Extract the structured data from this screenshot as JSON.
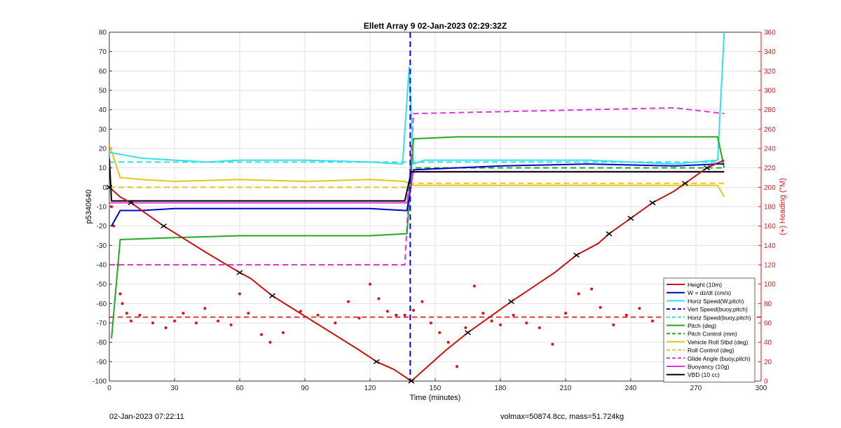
{
  "chart_data": {
    "type": "line",
    "title": "Ellett Array 9 02-Jan-2023 02:29:32Z",
    "xlabel": "Time (minutes)",
    "ylabel_left": "p5340640",
    "ylabel_right": "(+) Heading (°M)",
    "xlim": [
      0,
      300
    ],
    "ylim_left": [
      -100,
      80
    ],
    "ylim_right": [
      0,
      360
    ],
    "xticks": [
      0,
      30,
      60,
      90,
      120,
      150,
      180,
      210,
      240,
      270,
      300
    ],
    "yticks_left": [
      80,
      70,
      60,
      50,
      40,
      30,
      20,
      10,
      0,
      -10,
      -20,
      -30,
      -40,
      -50,
      -60,
      -70,
      -80,
      -90,
      -100
    ],
    "yticks_right": [
      360,
      340,
      320,
      300,
      280,
      260,
      240,
      220,
      200,
      180,
      160,
      140,
      120,
      100,
      80,
      60,
      40,
      20,
      0
    ],
    "grid": true,
    "legend_position": "lower-right",
    "colors": {
      "height": "#cc1111",
      "w": "#0000cc",
      "horiz_speed": "#33e0e8",
      "vert_speed": "#0000ee",
      "horiz_speed_buoy": "#33e0e8",
      "pitch": "#22aa22",
      "pitch_control": "#22aa22",
      "roll": "#e6c619",
      "roll_control": "#e6c619",
      "glide_angle": "#e033e0",
      "buoyancy": "#e033e0",
      "vbd": "#000000",
      "heading": "#dd1111",
      "right_axis": "#cc2222"
    },
    "series": [
      {
        "name": "Height (10m)",
        "style": "solid-markers",
        "x": [
          0,
          5,
          10,
          15,
          25,
          45,
          60,
          65,
          75,
          115,
          123,
          131,
          139,
          155,
          165,
          175,
          185,
          205,
          215,
          225,
          230,
          235,
          240,
          245,
          250,
          260,
          265,
          270,
          275,
          283
        ],
        "y": [
          0,
          -5,
          -8,
          -12,
          -20,
          -34,
          -44,
          -47,
          -56,
          -84,
          -90,
          -94,
          -100,
          -84,
          -75,
          -67,
          -59,
          -44,
          -35,
          -29,
          -24,
          -20,
          -16,
          -12,
          -8,
          -2,
          2,
          6,
          10,
          14
        ]
      },
      {
        "name": "W = dz/dt (cm/s)",
        "style": "solid",
        "x": [
          1,
          5,
          15,
          30,
          60,
          90,
          120,
          136,
          137,
          140,
          180,
          220,
          260,
          280,
          283
        ],
        "y": [
          -20,
          -12,
          -12,
          -11,
          -11,
          -11,
          -11,
          -12,
          -12,
          9,
          11,
          12,
          11,
          12,
          12
        ]
      },
      {
        "name": "Horiz Speed(W,pitch)",
        "style": "solid",
        "x": [
          0,
          5,
          15,
          30,
          45,
          60,
          90,
          120,
          135,
          138,
          140,
          145,
          180,
          220,
          260,
          280,
          283
        ],
        "y": [
          18,
          17,
          15,
          14,
          13,
          14,
          14,
          13,
          12,
          62,
          12,
          14,
          14,
          14,
          12,
          14,
          80
        ]
      },
      {
        "name": "Vert Speed(buoy,pitch)",
        "style": "dashed",
        "x": [
          138.5,
          138.5
        ],
        "y": [
          80,
          -100
        ]
      },
      {
        "name": "Horiz Speed(buoy,pitch)",
        "style": "dashed",
        "x": [
          0,
          283
        ],
        "y": [
          13,
          13
        ]
      },
      {
        "name": "Pitch (deg)",
        "style": "solid",
        "x": [
          1,
          5,
          30,
          60,
          90,
          120,
          136,
          137,
          140,
          160,
          200,
          240,
          280,
          283
        ],
        "y": [
          -78,
          -27,
          -26,
          -25,
          -25,
          -25,
          -24,
          -24,
          25,
          26,
          26,
          26,
          26,
          10
        ]
      },
      {
        "name": "Pitch Control (mm)",
        "style": "dashed",
        "x": [
          0,
          137,
          139,
          283
        ],
        "y": [
          -8,
          -8,
          10,
          10
        ]
      },
      {
        "name": "Vehicle Roll Stbd (deg)",
        "style": "solid",
        "x": [
          0,
          5,
          15,
          30,
          60,
          90,
          120,
          136,
          140,
          170,
          200,
          240,
          280,
          283
        ],
        "y": [
          22,
          5,
          4,
          3,
          4,
          3,
          4,
          3,
          1,
          1,
          1,
          1,
          1,
          -5
        ]
      },
      {
        "name": "Roll Control (deg)",
        "style": "dashed",
        "x": [
          0,
          137,
          140,
          283
        ],
        "y": [
          0,
          0,
          2,
          2
        ]
      },
      {
        "name": "Glide Angle (buoy,pitch)",
        "style": "dashed",
        "x": [
          0,
          30,
          60,
          90,
          120,
          136,
          140,
          180,
          220,
          260,
          283
        ],
        "y": [
          -40,
          -40,
          -40,
          -40,
          -40,
          -40,
          38,
          39,
          40,
          41,
          38
        ]
      },
      {
        "name": "Buoyancy (10g)",
        "style": "solid",
        "x": [
          0,
          137,
          140,
          283
        ],
        "y": [
          -8,
          -8,
          8,
          8
        ]
      },
      {
        "name": "VBD (10 cc)",
        "style": "solid",
        "x": [
          0,
          1,
          136,
          139,
          283
        ],
        "y": [
          15,
          -7,
          -7,
          8,
          8
        ]
      }
    ],
    "heading_points": {
      "axis": "right",
      "x": [
        1,
        2,
        4,
        5,
        6,
        8,
        10,
        14,
        20,
        26,
        30,
        34,
        40,
        44,
        50,
        56,
        60,
        64,
        70,
        74,
        80,
        88,
        96,
        104,
        110,
        115,
        120,
        124,
        128,
        132,
        136,
        140,
        144,
        148,
        152,
        156,
        160,
        164,
        168,
        172,
        176,
        180,
        186,
        192,
        198,
        204,
        210,
        216,
        222,
        226,
        232,
        238,
        244,
        250,
        256,
        262,
        268,
        274,
        280,
        283
      ],
      "y": [
        180,
        160,
        120,
        90,
        80,
        70,
        62,
        68,
        60,
        55,
        62,
        70,
        60,
        75,
        62,
        58,
        90,
        70,
        48,
        40,
        50,
        72,
        68,
        60,
        82,
        65,
        100,
        85,
        72,
        68,
        68,
        73,
        82,
        60,
        50,
        40,
        15,
        55,
        98,
        70,
        62,
        58,
        68,
        60,
        55,
        38,
        70,
        90,
        95,
        76,
        58,
        68,
        75,
        62,
        70,
        68,
        55,
        62,
        70,
        70
      ]
    },
    "heading_mean": {
      "axis": "right",
      "y": 66
    },
    "footer_left": "02-Jan-2023 07:22:11",
    "footer_right": "volmax=50874.8cc, mass=51.724kg"
  }
}
